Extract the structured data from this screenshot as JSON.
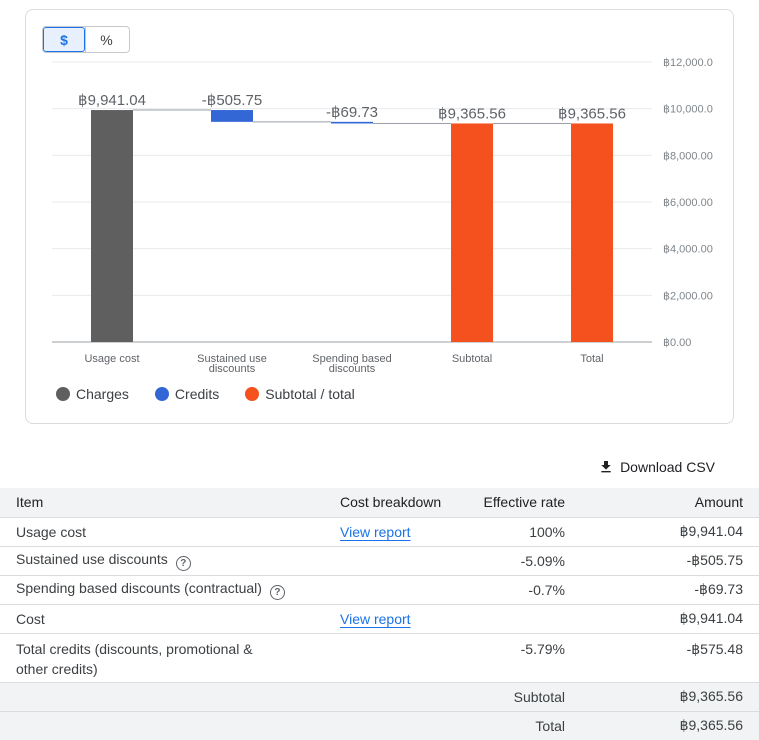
{
  "toggle": {
    "dollar": "$",
    "percent": "%"
  },
  "chart_data": {
    "type": "waterfall",
    "categories": [
      "Usage cost",
      "Sustained use discounts",
      "Spending based discounts",
      "Subtotal",
      "Total"
    ],
    "category_lines": [
      [
        "Usage cost"
      ],
      [
        "Sustained use",
        "discounts"
      ],
      [
        "Spending based",
        "discounts"
      ],
      [
        "Subtotal"
      ],
      [
        "Total"
      ]
    ],
    "values": [
      9941.04,
      -505.75,
      -69.73,
      9365.56,
      9365.56
    ],
    "bar_kind": [
      "charges",
      "credits",
      "credits",
      "subtotal",
      "subtotal"
    ],
    "value_labels": [
      "฿9,941.04",
      "-฿505.75",
      "-฿69.73",
      "฿9,365.56",
      "฿9,365.56"
    ],
    "ylim": [
      0,
      12000
    ],
    "yticks": [
      0,
      2000,
      4000,
      6000,
      8000,
      10000,
      12000
    ],
    "ytick_labels": [
      "฿0.00",
      "฿2,000.00",
      "฿4,000.00",
      "฿6,000.00",
      "฿8,000.00",
      "฿10,000.0",
      "฿12,000.0"
    ],
    "colors": {
      "charges": "#5f5f5f",
      "credits": "#3367d6",
      "subtotal": "#f4511e"
    }
  },
  "legend": [
    {
      "label": "Charges",
      "color": "#5f5f5f"
    },
    {
      "label": "Credits",
      "color": "#3367d6"
    },
    {
      "label": "Subtotal / total",
      "color": "#f4511e"
    }
  ],
  "download_label": "Download CSV",
  "table": {
    "headers": {
      "item": "Item",
      "breakdown": "Cost breakdown",
      "rate": "Effective rate",
      "amount": "Amount"
    },
    "rows": [
      {
        "item": "Usage cost",
        "link": "View report",
        "rate": "100%",
        "amount": "฿9,941.04"
      },
      {
        "item": "Sustained use discounts",
        "rate": "-5.09%",
        "amount": "-฿505.75"
      },
      {
        "item": "Spending based discounts (contractual)",
        "rate": "-0.7%",
        "amount": "-฿69.73"
      },
      {
        "item": "Cost",
        "link": "View report",
        "amount": "฿9,941.04"
      },
      {
        "item": "Total credits (discounts, promotional & other credits)",
        "rate": "-5.79%",
        "amount": "-฿575.48"
      }
    ],
    "subtotal": {
      "label": "Subtotal",
      "amount": "฿9,365.56"
    },
    "total": {
      "label": "Total",
      "amount": "฿9,365.56"
    }
  }
}
